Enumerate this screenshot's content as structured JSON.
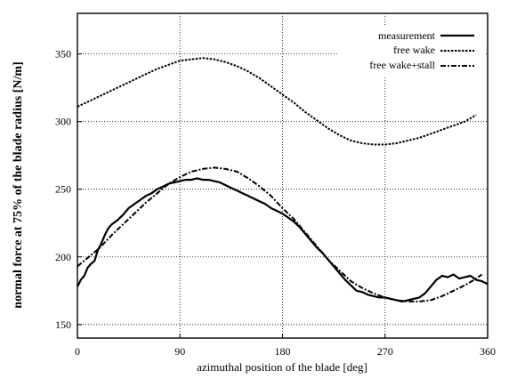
{
  "chart_data": {
    "type": "line",
    "title": "",
    "xlabel": "azimuthal position of the blade [deg]",
    "ylabel": "normal force at 75% of the blade radius [N/m]",
    "xlim": [
      0,
      360
    ],
    "ylim": [
      140,
      380
    ],
    "xticks": [
      "0",
      "90",
      "180",
      "270",
      "360"
    ],
    "yticks": [
      "150",
      "200",
      "250",
      "300",
      "350"
    ],
    "grid": "dotted",
    "legend_position": "top-right",
    "series": [
      {
        "name": "measurement",
        "style": "solid",
        "x": [
          0,
          3,
          6,
          9,
          12,
          15,
          18,
          21,
          24,
          27,
          30,
          35,
          40,
          45,
          50,
          55,
          60,
          65,
          70,
          75,
          80,
          85,
          90,
          95,
          100,
          105,
          110,
          115,
          120,
          125,
          130,
          135,
          140,
          145,
          150,
          155,
          160,
          165,
          170,
          175,
          180,
          185,
          190,
          195,
          200,
          205,
          210,
          215,
          220,
          225,
          230,
          235,
          240,
          245,
          250,
          255,
          260,
          265,
          270,
          275,
          280,
          285,
          290,
          295,
          300,
          305,
          310,
          315,
          320,
          325,
          330,
          335,
          340,
          345,
          350,
          355,
          360
        ],
        "y": [
          178,
          183,
          186,
          192,
          195,
          197,
          205,
          210,
          216,
          221,
          224,
          227,
          231,
          236,
          239,
          242,
          245,
          247,
          250,
          252,
          254,
          255,
          256,
          257,
          257,
          258,
          257,
          257,
          256,
          255,
          253,
          251,
          249,
          247,
          245,
          243,
          241,
          239,
          236,
          234,
          232,
          229,
          226,
          222,
          217,
          212,
          207,
          203,
          198,
          193,
          188,
          183,
          179,
          175,
          174,
          172,
          171,
          170,
          170,
          169,
          168,
          167,
          168,
          169,
          170,
          173,
          178,
          183,
          186,
          185,
          187,
          184,
          185,
          186,
          183,
          182,
          180
        ]
      },
      {
        "name": "free wake",
        "style": "dashed",
        "x": [
          0,
          10,
          20,
          30,
          40,
          50,
          60,
          70,
          80,
          90,
          100,
          110,
          120,
          130,
          140,
          150,
          160,
          170,
          180,
          190,
          200,
          210,
          220,
          230,
          240,
          250,
          260,
          270,
          280,
          290,
          300,
          310,
          320,
          330,
          340,
          350
        ],
        "y": [
          311,
          315,
          319,
          323,
          327,
          331,
          335,
          339,
          342,
          345,
          346,
          347,
          346,
          344,
          341,
          337,
          332,
          326,
          320,
          314,
          307,
          301,
          295,
          290,
          286,
          284,
          283,
          283,
          284,
          286,
          288,
          291,
          294,
          297,
          300,
          305
        ]
      },
      {
        "name": "free wake+stall",
        "style": "dash-dot",
        "x": [
          0,
          10,
          20,
          30,
          40,
          50,
          60,
          70,
          80,
          90,
          100,
          110,
          120,
          130,
          140,
          150,
          160,
          170,
          180,
          190,
          200,
          210,
          220,
          230,
          240,
          250,
          260,
          270,
          280,
          290,
          300,
          310,
          320,
          330,
          340,
          350,
          355
        ],
        "y": [
          193,
          200,
          207,
          216,
          224,
          232,
          240,
          247,
          254,
          259,
          263,
          265,
          266,
          265,
          263,
          258,
          252,
          245,
          236,
          228,
          218,
          208,
          198,
          190,
          182,
          177,
          173,
          170,
          168,
          167,
          167,
          168,
          171,
          175,
          179,
          184,
          187
        ]
      }
    ]
  }
}
